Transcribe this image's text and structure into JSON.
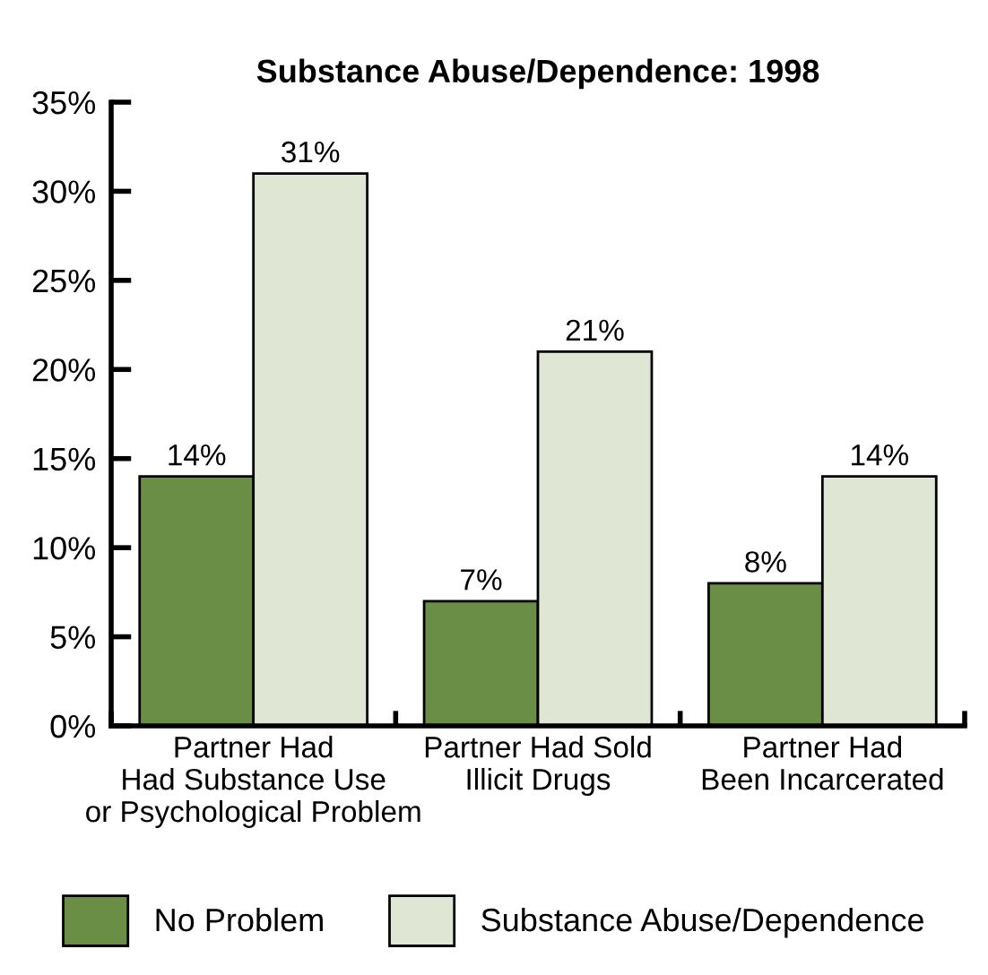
{
  "chart_data": {
    "type": "bar",
    "title": "Substance Abuse/Dependence: 1998",
    "categories": [
      "Partner Had\nHad Substance Use\nor Psychological Problem",
      "Partner Had Sold\nIllicit Drugs",
      "Partner Had\nBeen Incarcerated"
    ],
    "series": [
      {
        "name": "No Problem",
        "color": "#6b8e47",
        "values": [
          14,
          7,
          8
        ],
        "value_labels": [
          "14%",
          "7%",
          "8%"
        ]
      },
      {
        "name": "Substance Abuse/Dependence",
        "color": "#dfe6d3",
        "values": [
          31,
          21,
          14
        ],
        "value_labels": [
          "31%",
          "21%",
          "14%"
        ]
      }
    ],
    "ylim": [
      0,
      35
    ],
    "yticks": [
      {
        "value": 0,
        "label": "0%"
      },
      {
        "value": 5,
        "label": "5%"
      },
      {
        "value": 10,
        "label": "10%"
      },
      {
        "value": 15,
        "label": "15%"
      },
      {
        "value": 20,
        "label": "20%"
      },
      {
        "value": 25,
        "label": "25%"
      },
      {
        "value": 30,
        "label": "30%"
      },
      {
        "value": 35,
        "label": "35%"
      }
    ],
    "grid": false,
    "legend": "bottom"
  }
}
